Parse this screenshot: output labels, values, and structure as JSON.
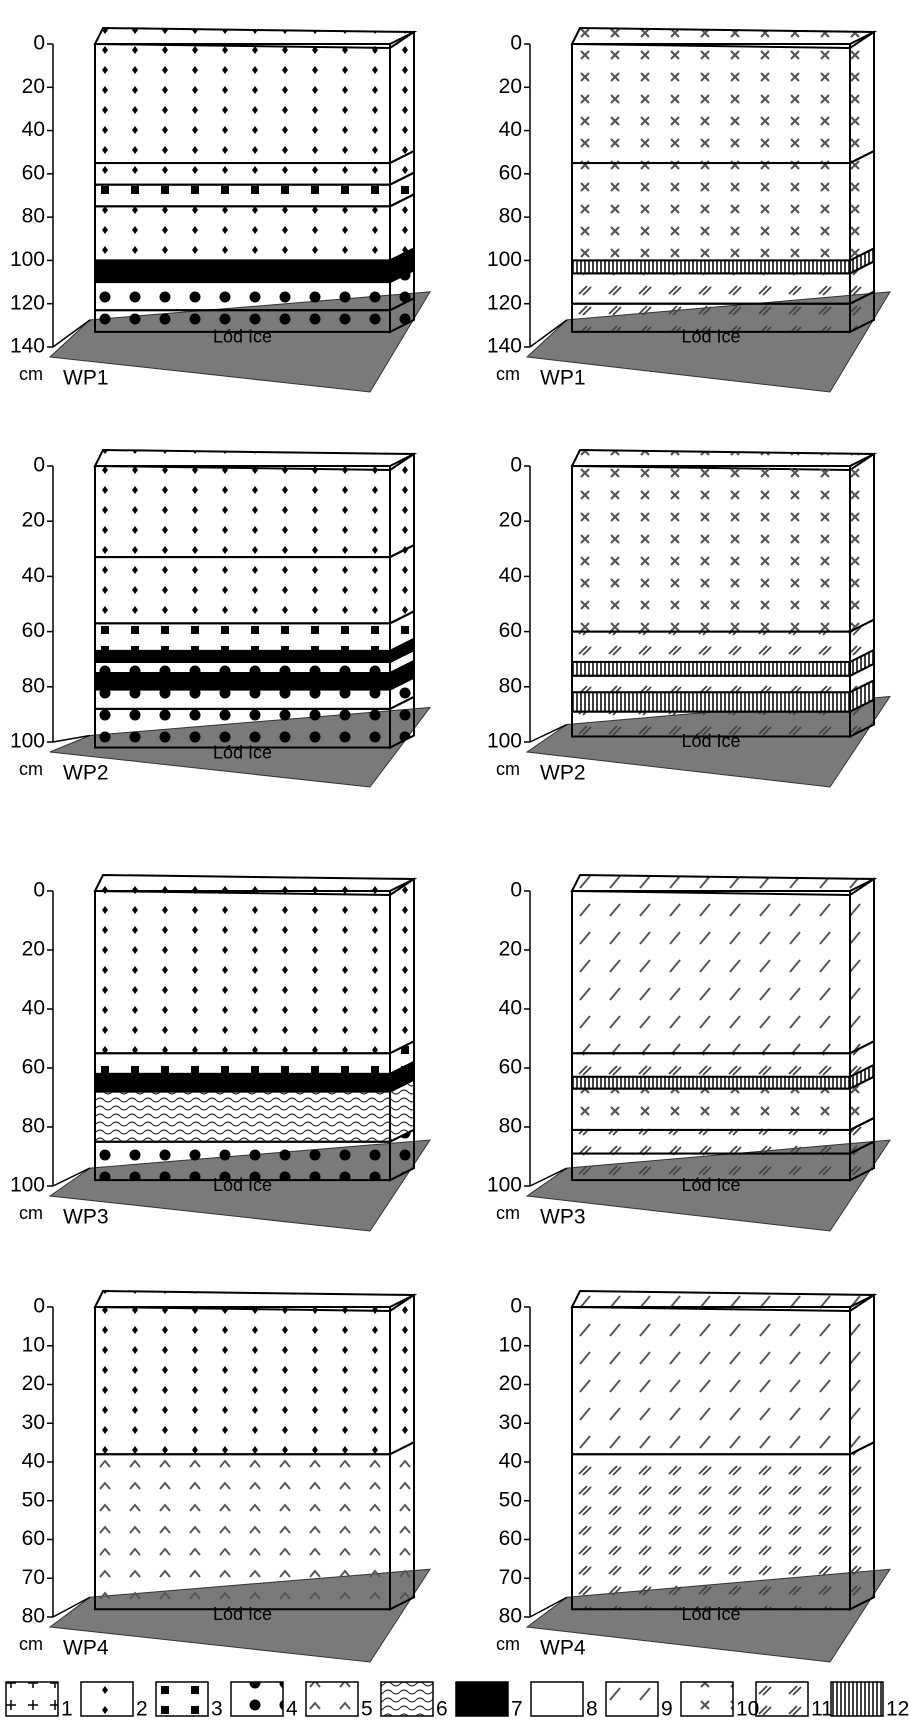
{
  "panels": [
    {
      "name": "WP1",
      "unit": "cm",
      "ice_label": "Lód Ice",
      "ylim": [
        0,
        140
      ],
      "yticks": [
        0,
        20,
        40,
        60,
        80,
        100,
        120,
        140
      ],
      "layers": [
        {
          "top": 0,
          "bottom": 55,
          "type": 2
        },
        {
          "top": 55,
          "bottom": 65,
          "type": 2
        },
        {
          "top": 65,
          "bottom": 75,
          "type": 3
        },
        {
          "top": 75,
          "bottom": 100,
          "type": 2
        },
        {
          "top": 100,
          "bottom": 110,
          "type": 7
        },
        {
          "top": 110,
          "bottom": 123,
          "type": 4
        },
        {
          "top": 123,
          "bottom": 133,
          "type": 4
        }
      ]
    },
    {
      "name": "WP1",
      "unit": "cm",
      "ice_label": "Lód Ice",
      "ylim": [
        0,
        140
      ],
      "yticks": [
        0,
        20,
        40,
        60,
        80,
        100,
        120,
        140
      ],
      "layers": [
        {
          "top": 0,
          "bottom": 55,
          "type": 10
        },
        {
          "top": 55,
          "bottom": 100,
          "type": 10
        },
        {
          "top": 100,
          "bottom": 106,
          "type": 12
        },
        {
          "top": 106,
          "bottom": 120,
          "type": 11
        },
        {
          "top": 120,
          "bottom": 133,
          "type": 11
        }
      ]
    },
    {
      "name": "WP2",
      "unit": "cm",
      "ice_label": "Lód Ice",
      "ylim": [
        0,
        100
      ],
      "yticks": [
        0,
        20,
        40,
        60,
        80,
        100
      ],
      "layers": [
        {
          "top": 0,
          "bottom": 33,
          "type": 2
        },
        {
          "top": 33,
          "bottom": 57,
          "type": 2
        },
        {
          "top": 57,
          "bottom": 67,
          "type": 3
        },
        {
          "top": 67,
          "bottom": 71,
          "type": 7
        },
        {
          "top": 71,
          "bottom": 75,
          "type": 4
        },
        {
          "top": 75,
          "bottom": 81,
          "type": 7
        },
        {
          "top": 81,
          "bottom": 88,
          "type": 4
        },
        {
          "top": 88,
          "bottom": 102,
          "type": 4
        }
      ]
    },
    {
      "name": "WP2",
      "unit": "cm",
      "ice_label": "Lód Ice",
      "ylim": [
        0,
        100
      ],
      "yticks": [
        0,
        20,
        40,
        60,
        80,
        100
      ],
      "layers": [
        {
          "top": 0,
          "bottom": 60,
          "type": 10
        },
        {
          "top": 60,
          "bottom": 71,
          "type": 11
        },
        {
          "top": 71,
          "bottom": 76,
          "type": 12
        },
        {
          "top": 76,
          "bottom": 82,
          "type": 11
        },
        {
          "top": 82,
          "bottom": 89,
          "type": 12
        },
        {
          "top": 89,
          "bottom": 98,
          "type": 11
        }
      ]
    },
    {
      "name": "WP3",
      "unit": "cm",
      "ice_label": "Lód Ice",
      "ylim": [
        0,
        100
      ],
      "yticks": [
        0,
        20,
        40,
        60,
        80,
        100
      ],
      "layers": [
        {
          "top": 0,
          "bottom": 55,
          "type": 2
        },
        {
          "top": 55,
          "bottom": 62,
          "type": 3
        },
        {
          "top": 62,
          "bottom": 68,
          "type": 7
        },
        {
          "top": 68,
          "bottom": 85,
          "type": 6
        },
        {
          "top": 85,
          "bottom": 98,
          "type": 4
        }
      ]
    },
    {
      "name": "WP3",
      "unit": "cm",
      "ice_label": "Lód Ice",
      "ylim": [
        0,
        100
      ],
      "yticks": [
        0,
        20,
        40,
        60,
        80,
        100
      ],
      "layers": [
        {
          "top": 0,
          "bottom": 55,
          "type": 9
        },
        {
          "top": 55,
          "bottom": 63,
          "type": 11
        },
        {
          "top": 63,
          "bottom": 67,
          "type": 12
        },
        {
          "top": 67,
          "bottom": 81,
          "type": 10
        },
        {
          "top": 81,
          "bottom": 89,
          "type": 11
        },
        {
          "top": 89,
          "bottom": 98,
          "type": 11
        }
      ]
    },
    {
      "name": "WP4",
      "unit": "cm",
      "ice_label": "Lód Ice",
      "ylim": [
        0,
        80
      ],
      "yticks": [
        0,
        10,
        20,
        30,
        40,
        50,
        60,
        70,
        80
      ],
      "layers": [
        {
          "top": 0,
          "bottom": 38,
          "type": 2
        },
        {
          "top": 38,
          "bottom": 78,
          "type": 5
        }
      ]
    },
    {
      "name": "WP4",
      "unit": "cm",
      "ice_label": "Lód Ice",
      "ylim": [
        0,
        80
      ],
      "yticks": [
        0,
        10,
        20,
        30,
        40,
        50,
        60,
        70,
        80
      ],
      "layers": [
        {
          "top": 0,
          "bottom": 38,
          "type": 9
        },
        {
          "top": 38,
          "bottom": 78,
          "type": 11
        }
      ]
    }
  ],
  "legend": [
    "1",
    "2",
    "3",
    "4",
    "5",
    "6",
    "7",
    "8",
    "9",
    "10",
    "11",
    "12"
  ]
}
